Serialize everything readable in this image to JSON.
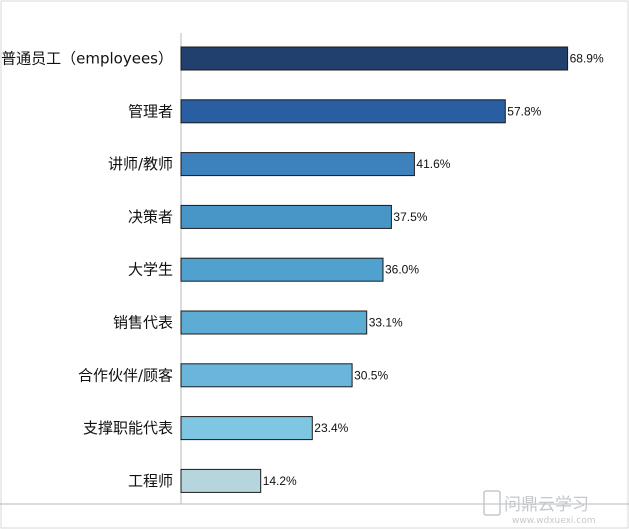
{
  "chart_data": {
    "type": "bar",
    "orientation": "horizontal",
    "categories": [
      "普通员工（employees）",
      "管理者",
      "讲师/教师",
      "决策者",
      "大学生",
      "销售代表",
      "合作伙伴/顾客",
      "支撑职能代表",
      "工程师"
    ],
    "values": [
      68.9,
      57.8,
      41.6,
      37.5,
      36.0,
      33.1,
      30.5,
      23.4,
      14.2
    ],
    "value_labels": [
      "68.9%",
      "57.8%",
      "41.6%",
      "37.5%",
      "36.0%",
      "33.1%",
      "30.5%",
      "23.4%",
      "14.2%"
    ],
    "colors": [
      "#22406e",
      "#2a5ea2",
      "#3e82bd",
      "#4896c8",
      "#50a1ce",
      "#5cacd4",
      "#69b6da",
      "#7fc6e3",
      "#b7d5dc"
    ],
    "xlim": [
      0,
      77
    ],
    "grid": false,
    "legend": "none",
    "title": "",
    "xlabel": "",
    "ylabel": ""
  },
  "watermark": {
    "text": "问鼎云学习",
    "url": "www.wdxuexi.com"
  }
}
